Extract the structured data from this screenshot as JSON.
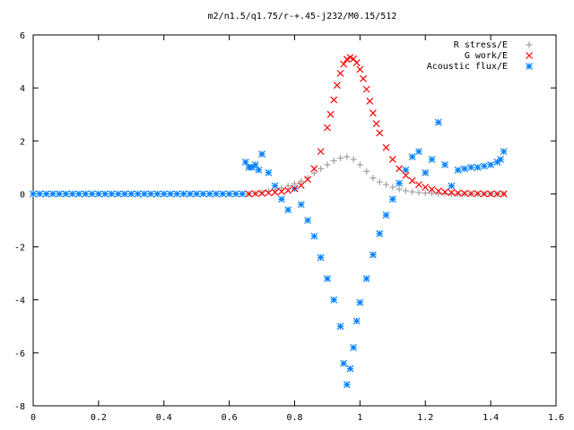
{
  "chart_data": {
    "type": "scatter",
    "title": "m2/n1.5/q1.75/r-+.45-j232/M0.15/512",
    "xlabel": "",
    "ylabel": "",
    "xlim": [
      0,
      1.6
    ],
    "ylim": [
      -8,
      6
    ],
    "x_ticks": [
      "0",
      "0.2",
      "0.4",
      "0.6",
      "0.8",
      "1",
      "1.2",
      "1.4",
      "1.6"
    ],
    "y_ticks": [
      "6",
      "4",
      "2",
      "0",
      "-2",
      "-4",
      "-6",
      "-8"
    ],
    "grid": false,
    "legend_position": "top-right",
    "series": [
      {
        "name": "R stress/E",
        "marker": "plus",
        "color": "#a0a0a0",
        "x": [
          0.66,
          0.68,
          0.7,
          0.72,
          0.74,
          0.76,
          0.78,
          0.8,
          0.82,
          0.84,
          0.86,
          0.88,
          0.9,
          0.92,
          0.94,
          0.96,
          0.98,
          1.0,
          1.02,
          1.04,
          1.06,
          1.08,
          1.1,
          1.12,
          1.14,
          1.16,
          1.18,
          1.2,
          1.22,
          1.24,
          1.26,
          1.28,
          1.3,
          1.32,
          1.34,
          1.36,
          1.38,
          1.4,
          1.42,
          1.44
        ],
        "y": [
          0.0,
          0.02,
          0.05,
          0.1,
          0.15,
          0.22,
          0.3,
          0.38,
          0.48,
          0.6,
          0.78,
          0.95,
          1.1,
          1.25,
          1.35,
          1.4,
          1.3,
          1.1,
          0.85,
          0.6,
          0.45,
          0.35,
          0.25,
          0.18,
          0.12,
          0.08,
          0.05,
          0.03,
          0.02,
          0.01,
          0.01,
          0.0,
          0.0,
          0.0,
          0.0,
          0.0,
          0.0,
          0.0,
          0.0,
          0.0
        ]
      },
      {
        "name": "G work/E",
        "marker": "cross",
        "color": "#ff0000",
        "x": [
          0.66,
          0.68,
          0.7,
          0.72,
          0.74,
          0.76,
          0.78,
          0.8,
          0.82,
          0.84,
          0.86,
          0.88,
          0.9,
          0.91,
          0.92,
          0.93,
          0.94,
          0.95,
          0.96,
          0.97,
          0.98,
          0.99,
          1.0,
          1.01,
          1.02,
          1.03,
          1.04,
          1.05,
          1.06,
          1.08,
          1.1,
          1.12,
          1.14,
          1.16,
          1.18,
          1.2,
          1.22,
          1.24,
          1.26,
          1.28,
          1.3,
          1.32,
          1.34,
          1.36,
          1.38,
          1.4,
          1.42,
          1.44
        ],
        "y": [
          0.0,
          0.01,
          0.02,
          0.04,
          0.06,
          0.09,
          0.13,
          0.2,
          0.32,
          0.55,
          0.95,
          1.6,
          2.5,
          3.0,
          3.55,
          4.1,
          4.55,
          4.9,
          5.08,
          5.15,
          5.1,
          4.95,
          4.7,
          4.35,
          3.95,
          3.5,
          3.05,
          2.65,
          2.3,
          1.75,
          1.3,
          0.95,
          0.7,
          0.5,
          0.35,
          0.25,
          0.17,
          0.11,
          0.07,
          0.05,
          0.03,
          0.02,
          0.01,
          0.01,
          0.0,
          0.0,
          0.0,
          0.0
        ]
      },
      {
        "name": "Acoustic flux/E",
        "marker": "star",
        "color": "#0080ff",
        "x": [
          0.0,
          0.02,
          0.04,
          0.06,
          0.08,
          0.1,
          0.12,
          0.14,
          0.16,
          0.18,
          0.2,
          0.22,
          0.24,
          0.26,
          0.28,
          0.3,
          0.32,
          0.34,
          0.36,
          0.38,
          0.4,
          0.42,
          0.44,
          0.46,
          0.48,
          0.5,
          0.52,
          0.54,
          0.56,
          0.58,
          0.6,
          0.62,
          0.64,
          0.65,
          0.66,
          0.67,
          0.68,
          0.69,
          0.7,
          0.72,
          0.74,
          0.76,
          0.78,
          0.8,
          0.82,
          0.84,
          0.86,
          0.88,
          0.9,
          0.92,
          0.94,
          0.95,
          0.96,
          0.97,
          0.98,
          0.99,
          1.0,
          1.02,
          1.04,
          1.06,
          1.08,
          1.1,
          1.12,
          1.14,
          1.16,
          1.18,
          1.2,
          1.22,
          1.24,
          1.26,
          1.28,
          1.3,
          1.32,
          1.34,
          1.36,
          1.38,
          1.4,
          1.42,
          1.43,
          1.44
        ],
        "y": [
          0,
          0,
          0,
          0,
          0,
          0,
          0,
          0,
          0,
          0,
          0,
          0,
          0,
          0,
          0,
          0,
          0,
          0,
          0,
          0,
          0,
          0,
          0,
          0,
          0,
          0,
          0,
          0,
          0,
          0,
          0,
          0,
          0,
          1.2,
          1.0,
          1.0,
          1.1,
          0.9,
          1.5,
          0.8,
          0.3,
          -0.2,
          -0.6,
          0.2,
          -0.4,
          -1.0,
          -1.6,
          -2.4,
          -3.2,
          -4.0,
          -5.0,
          -6.4,
          -7.2,
          -6.6,
          -5.8,
          -4.8,
          -4.1,
          -3.2,
          -2.3,
          -1.5,
          -0.8,
          -0.2,
          0.4,
          0.9,
          1.4,
          1.6,
          0.8,
          1.3,
          2.7,
          1.1,
          0.3,
          0.9,
          0.95,
          1.0,
          1.0,
          1.05,
          1.1,
          1.2,
          1.3,
          1.6
        ]
      }
    ]
  }
}
